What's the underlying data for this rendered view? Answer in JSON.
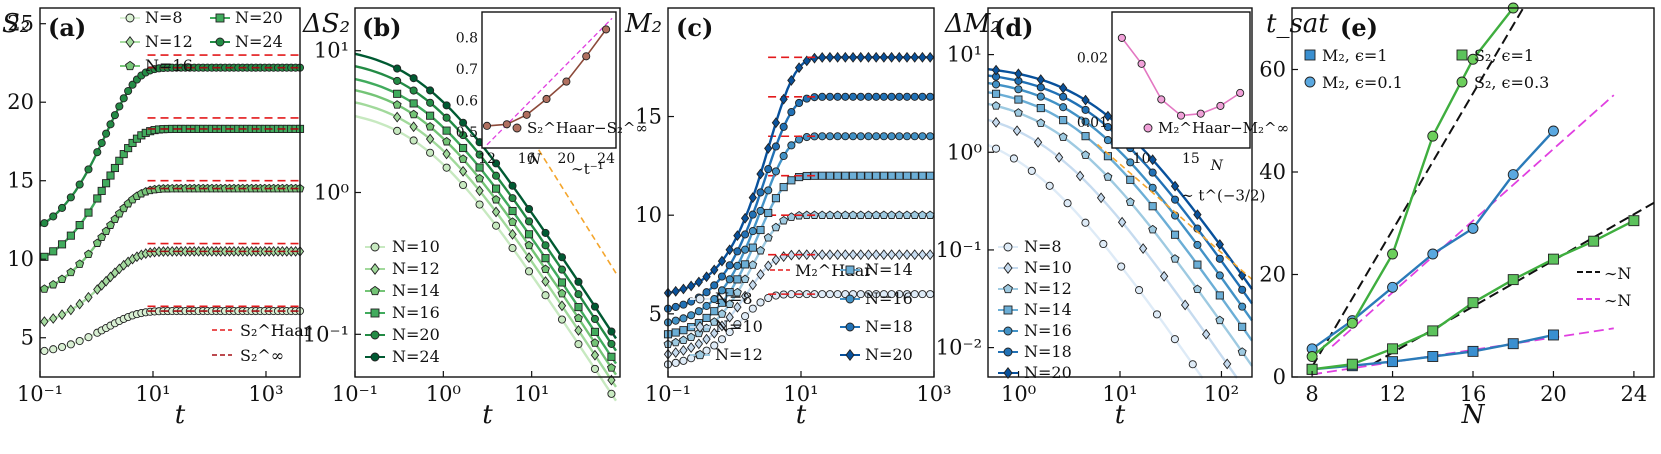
{
  "chart_data": [
    {
      "panel": "(a)",
      "type": "line",
      "xlabel": "t",
      "ylabel": "S₂",
      "xscale": "log",
      "xlim": [
        0.1,
        4000
      ],
      "ylim": [
        2.5,
        26
      ],
      "x_ticks": [
        "10⁻¹",
        "10¹",
        "10³"
      ],
      "y_ticks": [
        "5",
        "10",
        "15",
        "20",
        "25"
      ],
      "series": [
        {
          "name": "N=8",
          "values": {
            "start": 3.8,
            "sat": 6.7
          },
          "marker": "circle",
          "color": "#e5f5e0"
        },
        {
          "name": "N=12",
          "values": {
            "start": 5.4,
            "sat": 10.5
          },
          "marker": "diamond",
          "color": "#a1d99b"
        },
        {
          "name": "N=16",
          "values": {
            "start": 7.2,
            "sat": 14.5
          },
          "marker": "pentagon",
          "color": "#74c476"
        },
        {
          "name": "N=20",
          "values": {
            "start": 9.0,
            "sat": 18.3
          },
          "marker": "square",
          "color": "#41ab5d"
        },
        {
          "name": "N=24",
          "values": {
            "start": 10.9,
            "sat": 22.2
          },
          "marker": "circle",
          "color": "#238b45"
        }
      ],
      "haar": [
        7.0,
        11.0,
        15.0,
        19.0,
        23.0
      ],
      "infinity": [
        6.7,
        10.5,
        14.5,
        18.3,
        22.2
      ],
      "legend": [
        "N=8",
        "N=20",
        "N=12",
        "N=24",
        "N=16"
      ],
      "legend2": [
        "S₂^Haar",
        "S₂^∞"
      ]
    },
    {
      "panel": "(b)",
      "type": "line",
      "xlabel": "t",
      "ylabel": "ΔS₂",
      "xscale": "log",
      "yscale": "log",
      "xlim": [
        0.1,
        100
      ],
      "ylim": [
        0.05,
        20
      ],
      "x_ticks": [
        "10⁻¹",
        "10⁰",
        "10¹"
      ],
      "y_ticks": [
        "10⁻¹",
        "10⁰",
        "10¹"
      ],
      "series": [
        {
          "name": "N=10",
          "y0": 4.0,
          "marker": "circle"
        },
        {
          "name": "N=12",
          "y0": 5.0,
          "marker": "diamond"
        },
        {
          "name": "N=14",
          "y0": 6.1,
          "marker": "pentagon"
        },
        {
          "name": "N=16",
          "y0": 7.3,
          "marker": "square"
        },
        {
          "name": "N=20",
          "y0": 9.0,
          "marker": "circle"
        },
        {
          "name": "N=24",
          "y0": 11.0,
          "marker": "circle"
        }
      ],
      "guide": "∼t⁻¹",
      "inset": {
        "x": [
          12,
          14,
          16,
          18,
          20,
          22,
          24
        ],
        "y": [
          0.52,
          0.525,
          0.555,
          0.605,
          0.66,
          0.74,
          0.825
        ],
        "xlabel": "N",
        "x_ticks": [
          "12",
          "16",
          "20",
          "24"
        ],
        "y_ticks": [
          "0.5",
          "0.6",
          "0.7",
          "0.8"
        ],
        "label": "S₂^Haar−S₂^∞"
      }
    },
    {
      "panel": "(c)",
      "type": "line",
      "xlabel": "t",
      "ylabel": "M₂",
      "xscale": "log",
      "xlim": [
        0.1,
        1000
      ],
      "ylim": [
        1.8,
        20.5
      ],
      "x_ticks": [
        "10⁻¹",
        "10¹",
        "10³"
      ],
      "y_ticks": [
        "5",
        "10",
        "15"
      ],
      "series": [
        {
          "name": "N=8",
          "start": 2.2,
          "sat": 6.0,
          "marker": "circle"
        },
        {
          "name": "N=10",
          "start": 2.7,
          "sat": 8.0,
          "marker": "diamond"
        },
        {
          "name": "N=12",
          "start": 3.2,
          "sat": 10.0,
          "marker": "pentagon"
        },
        {
          "name": "N=14",
          "start": 3.7,
          "sat": 12.0,
          "marker": "square"
        },
        {
          "name": "N=16",
          "start": 4.3,
          "sat": 14.0,
          "marker": "circle"
        },
        {
          "name": "N=18",
          "start": 5.0,
          "sat": 16.0,
          "marker": "circle"
        },
        {
          "name": "N=20",
          "start": 5.8,
          "sat": 18.0,
          "marker": "diamond"
        }
      ],
      "haar_label": "M₂^Haar",
      "legend": [
        "N=14",
        "N=8",
        "N=16",
        "N=10",
        "N=18",
        "N=12",
        "N=20"
      ]
    },
    {
      "panel": "(d)",
      "type": "line",
      "xlabel": "t",
      "ylabel": "ΔM₂",
      "xscale": "log",
      "yscale": "log",
      "xlim": [
        0.5,
        200
      ],
      "ylim": [
        0.005,
        30
      ],
      "x_ticks": [
        "10⁰",
        "10¹",
        "10²"
      ],
      "y_ticks": [
        "10⁻²",
        "10⁻¹",
        "10⁰",
        "10¹"
      ],
      "series": [
        {
          "name": "N=8",
          "y0": 2.0,
          "marker": "circle"
        },
        {
          "name": "N=10",
          "y0": 3.0,
          "marker": "diamond"
        },
        {
          "name": "N=12",
          "y0": 4.0,
          "marker": "pentagon"
        },
        {
          "name": "N=14",
          "y0": 5.0,
          "marker": "square"
        },
        {
          "name": "N=16",
          "y0": 6.0,
          "marker": "circle"
        },
        {
          "name": "N=18",
          "y0": 7.0,
          "marker": "circle"
        },
        {
          "name": "N=20",
          "y0": 8.0,
          "marker": "diamond"
        }
      ],
      "guide": "∼ t^(−3/2)",
      "inset": {
        "x": [
          8,
          10,
          12,
          14,
          16,
          18,
          20
        ],
        "y": [
          0.023,
          0.019,
          0.0135,
          0.011,
          0.0113,
          0.0125,
          0.0145
        ],
        "xlabel": "N",
        "x_ticks": [
          "10",
          "15"
        ],
        "y_ticks": [
          "0.01",
          "0.02"
        ],
        "label": "M₂^Haar−M₂^∞"
      }
    },
    {
      "panel": "(e)",
      "type": "line",
      "xlabel": "N",
      "ylabel": "t_sat",
      "xlim": [
        7,
        25
      ],
      "ylim": [
        0,
        72
      ],
      "x_ticks": [
        "8",
        "12",
        "16",
        "20",
        "24"
      ],
      "y_ticks": [
        "0",
        "20",
        "40",
        "60"
      ],
      "series": [
        {
          "name": "M₂, ϵ=1",
          "x": [
            8,
            10,
            12,
            14,
            16,
            18,
            20
          ],
          "y": [
            1.5,
            2.2,
            3.0,
            4.0,
            5.0,
            6.5,
            8.2
          ],
          "marker": "square",
          "color": "#1f77b4"
        },
        {
          "name": "M₂, ϵ=0.1",
          "x": [
            8,
            10,
            12,
            14,
            16,
            18,
            20
          ],
          "y": [
            5.5,
            11,
            17.5,
            24,
            29,
            39.5,
            48
          ],
          "marker": "circle",
          "color": "#1f77b4"
        },
        {
          "name": "S₂, ϵ=1",
          "x": [
            8,
            10,
            12,
            14,
            16,
            18,
            20,
            22,
            24
          ],
          "y": [
            1.5,
            2.5,
            5.5,
            9,
            14.5,
            19,
            23,
            26.5,
            30.5
          ],
          "marker": "square",
          "color": "#2ca02c"
        },
        {
          "name": "S₂, ϵ=0.3",
          "x": [
            8,
            10,
            12,
            14,
            16,
            18
          ],
          "y": [
            4,
            10.5,
            24,
            47,
            62,
            72
          ],
          "marker": "circle",
          "color": "#2ca02c"
        }
      ],
      "fits": [
        "∼N",
        "∼N"
      ]
    }
  ]
}
